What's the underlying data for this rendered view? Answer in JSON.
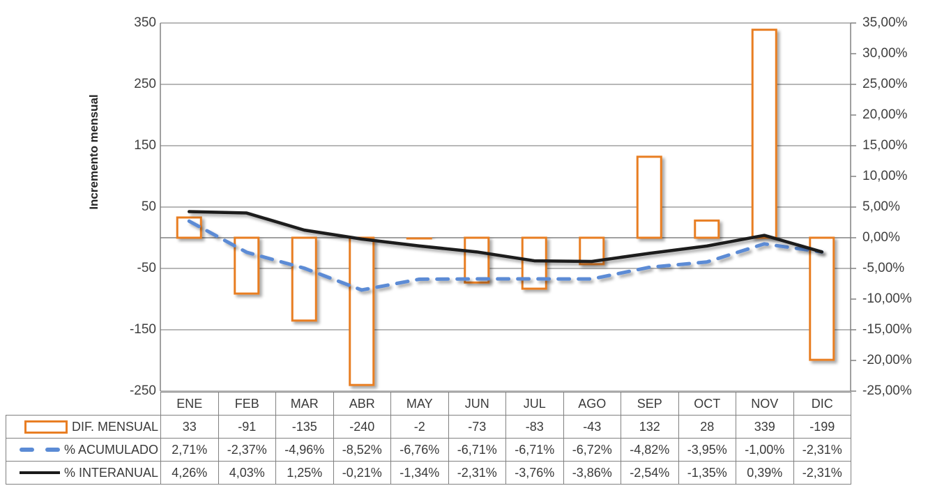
{
  "colors": {
    "bar_series": "#E87E24",
    "acumulado_series": "#5B8BD5",
    "interanual_series": "#1A1A1A",
    "gridline": "#A0A0A0",
    "axis_line": "#808080",
    "text": "#3f3f3f"
  },
  "chart_data": {
    "type": "bar",
    "subtype": "combo-bar-line",
    "title": "",
    "categories": [
      "ENE",
      "FEB",
      "MAR",
      "ABR",
      "MAY",
      "JUN",
      "JUL",
      "AGO",
      "SEP",
      "OCT",
      "NOV",
      "DIC"
    ],
    "series": [
      {
        "name": "DIF. MENSUAL",
        "type": "bar",
        "axis": "left",
        "color": "#E87E24",
        "values": [
          33,
          -91,
          -135,
          -240,
          -2,
          -73,
          -83,
          -43,
          132,
          28,
          339,
          -199
        ],
        "display": [
          "33",
          "-91",
          "-135",
          "-240",
          "-2",
          "-73",
          "-83",
          "-43",
          "132",
          "28",
          "339",
          "-199"
        ]
      },
      {
        "name": "% ACUMULADO",
        "type": "line",
        "dashed": true,
        "axis": "right",
        "color": "#5B8BD5",
        "values": [
          2.71,
          -2.37,
          -4.96,
          -8.52,
          -6.76,
          -6.71,
          -6.71,
          -6.72,
          -4.82,
          -3.95,
          -1.0,
          -2.31
        ],
        "display": [
          "2,71%",
          "-2,37%",
          "-4,96%",
          "-8,52%",
          "-6,76%",
          "-6,71%",
          "-6,71%",
          "-6,72%",
          "-4,82%",
          "-3,95%",
          "-1,00%",
          "-2,31%"
        ]
      },
      {
        "name": "% INTERANUAL",
        "type": "line",
        "dashed": false,
        "axis": "right",
        "color": "#1A1A1A",
        "values": [
          4.26,
          4.03,
          1.25,
          -0.21,
          -1.34,
          -2.31,
          -3.76,
          -3.86,
          -2.54,
          -1.35,
          0.39,
          -2.31
        ],
        "display": [
          "4,26%",
          "4,03%",
          "1,25%",
          "-0,21%",
          "-1,34%",
          "-2,31%",
          "-3,76%",
          "-3,86%",
          "-2,54%",
          "-1,35%",
          "0,39%",
          "-2,31%"
        ]
      }
    ],
    "y_axis": {
      "title": "Incremento mensual",
      "min": -250,
      "max": 350,
      "tick_labels": [
        "350",
        "250",
        "150",
        "50",
        "-50",
        "-150",
        "-250"
      ]
    },
    "y2_axis": {
      "min": -25,
      "max": 35,
      "tick_labels": [
        "35,00%",
        "30,00%",
        "25,00%",
        "20,00%",
        "15,00%",
        "10,00%",
        "5,00%",
        "0,00%",
        "-5,00%",
        "-10,00%",
        "-15,00%",
        "-20,00%",
        "-25,00%"
      ]
    },
    "grid": true,
    "legend_position": "table-left"
  }
}
